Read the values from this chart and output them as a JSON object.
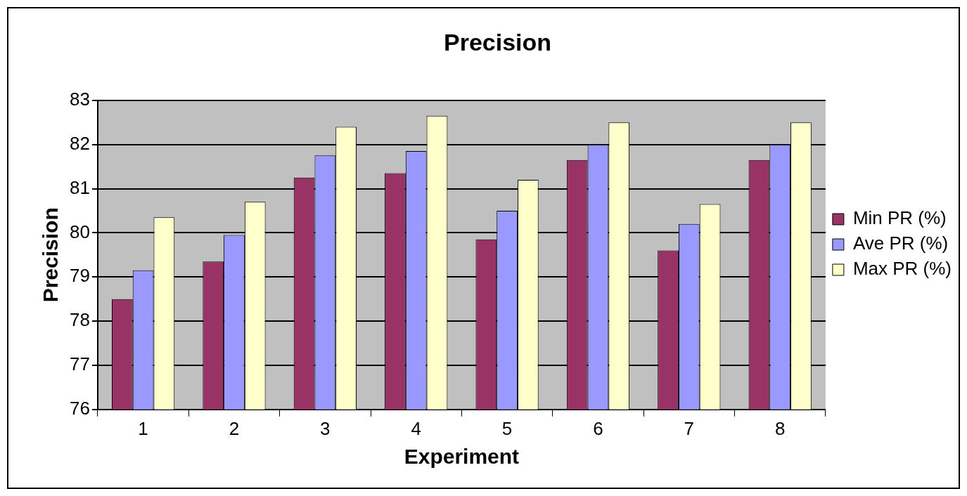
{
  "chart_data": {
    "type": "bar",
    "title": "Precision",
    "xlabel": "Experiment",
    "ylabel": "Precision",
    "categories": [
      "1",
      "2",
      "3",
      "4",
      "5",
      "6",
      "7",
      "8"
    ],
    "series": [
      {
        "name": "Min PR (%)",
        "color": "#993366",
        "values": [
          78.5,
          79.35,
          81.25,
          81.35,
          79.85,
          81.65,
          79.6,
          81.65
        ]
      },
      {
        "name": "Ave PR (%)",
        "color": "#9999ff",
        "values": [
          79.15,
          79.95,
          81.75,
          81.85,
          80.5,
          82,
          80.2,
          82
        ]
      },
      {
        "name": "Max PR (%)",
        "color": "#ffffcc",
        "values": [
          80.35,
          80.7,
          82.4,
          82.65,
          81.2,
          82.5,
          80.65,
          82.5
        ]
      }
    ],
    "ylim": [
      76,
      83
    ],
    "yticks": [
      76,
      77,
      78,
      79,
      80,
      81,
      82,
      83
    ],
    "grid": "y",
    "legend": "right"
  }
}
